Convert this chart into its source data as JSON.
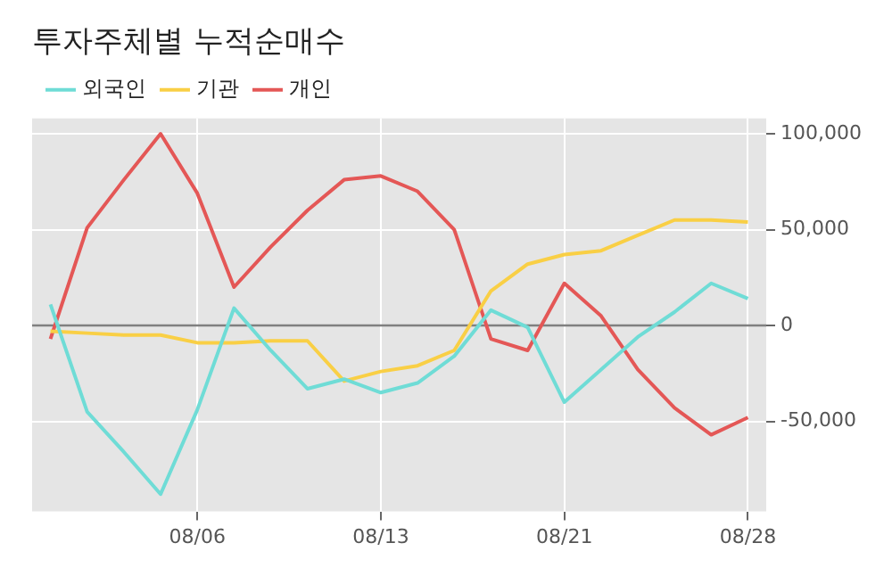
{
  "chart_data": {
    "type": "line",
    "title": "투자주체별 누적순매수",
    "categories": [
      null,
      null,
      null,
      null,
      "08/06",
      null,
      null,
      null,
      null,
      "08/13",
      null,
      null,
      null,
      null,
      "08/21",
      null,
      null,
      null,
      null,
      "08/28"
    ],
    "series": [
      {
        "name": "외국인",
        "color": "#6fdcd6",
        "values": [
          11000,
          -45000,
          -66000,
          -88000,
          -44000,
          9000,
          -13000,
          -33000,
          -28000,
          -35000,
          -30000,
          -16000,
          8000,
          -1000,
          -40000,
          -23000,
          -6000,
          7000,
          22000,
          14000
        ]
      },
      {
        "name": "기관",
        "color": "#f9cf45",
        "values": [
          -3000,
          -4000,
          -5000,
          -5000,
          -9000,
          -9000,
          -8000,
          -8000,
          -29000,
          -24000,
          -21000,
          -13000,
          18000,
          32000,
          37000,
          39000,
          47000,
          55000,
          55000,
          54000
        ]
      },
      {
        "name": "개인",
        "color": "#e45756",
        "values": [
          -7000,
          51000,
          76000,
          100000,
          69000,
          20000,
          41000,
          60000,
          76000,
          78000,
          70000,
          50000,
          -7000,
          -13000,
          22000,
          5000,
          -23000,
          -43000,
          -57000,
          -48000
        ]
      }
    ],
    "ylim": [
      -97000,
      108000
    ],
    "yticks": [
      {
        "value": -50000,
        "label": "-50,000"
      },
      0,
      {
        "value": 50000,
        "label": "50,000"
      },
      {
        "value": 100000,
        "label": "100,000"
      }
    ],
    "ref_lines": [
      {
        "axis": "y",
        "value": 0,
        "color": "#808080"
      }
    ],
    "grid": true,
    "legend": "top left",
    "marker": "none",
    "line_style": "solid"
  }
}
